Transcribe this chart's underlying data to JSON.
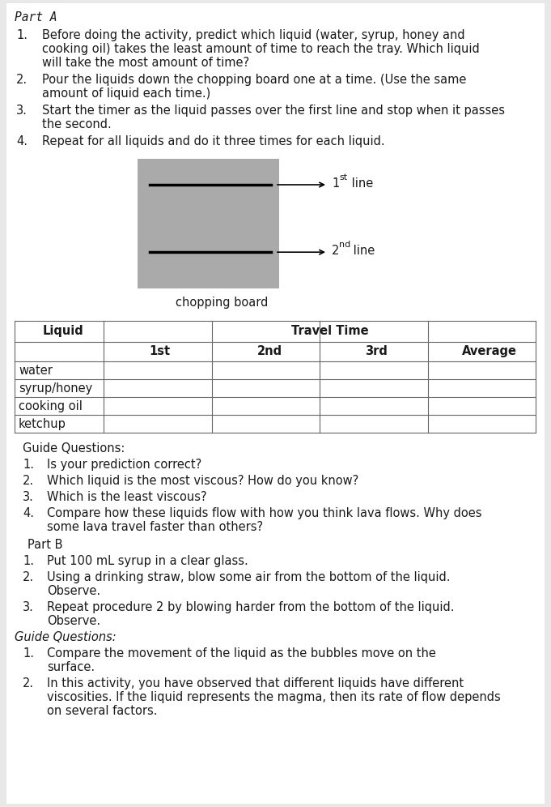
{
  "bg_color": "#e8e8e8",
  "page_bg": "#ffffff",
  "part_a_title": "Part A",
  "instructions": [
    [
      "Before doing the activity, predict which liquid (water, syrup, honey and",
      "cooking oil) takes the least amount of time to reach the tray. Which liquid",
      "will take the most amount of time?"
    ],
    [
      "Pour the liquids down the chopping board one at a time. (Use the same",
      "amount of liquid each time.)"
    ],
    [
      "Start the timer as the liquid passes over the first line and stop when it passes",
      "the second."
    ],
    [
      "Repeat for all liquids and do it three times for each liquid."
    ]
  ],
  "board_color": "#aaaaaa",
  "line1_sup": "st",
  "line2_sup": "nd",
  "chopping_board_label": "chopping board",
  "table_rows": [
    "water",
    "syrup/honey",
    "cooking oil",
    "ketchup"
  ],
  "table_sub_headers": [
    "1st",
    "2nd",
    "3rd",
    "Average"
  ],
  "guide_questions_a_header": "Guide Questions:",
  "guide_questions_a": [
    [
      "Is your prediction correct?"
    ],
    [
      "Which liquid is the most viscous? How do you know?"
    ],
    [
      "Which is the least viscous?"
    ],
    [
      "Compare how these liquids flow with how you think lava flows. Why does",
      "some lava travel faster than others?"
    ]
  ],
  "part_b_title": "Part B",
  "part_b_instructions": [
    [
      "Put 100 mL syrup in a clear glass."
    ],
    [
      "Using a drinking straw, blow some air from the bottom of the liquid.",
      "Observe."
    ],
    [
      "Repeat procedure 2 by blowing harder from the bottom of the liquid.",
      "Observe."
    ]
  ],
  "guide_questions_b_header": "Guide Questions:",
  "guide_questions_b": [
    [
      "Compare the movement of the liquid as the bubbles move on the",
      "surface."
    ],
    [
      "In this activity, you have observed that different liquids have different",
      "viscosities. If the liquid represents the magma, then its rate of flow depends",
      "on several factors."
    ]
  ],
  "font_size": 10.5,
  "font_size_small": 8.0,
  "text_color": "#1a1a1a",
  "table_border_color": "#666666"
}
